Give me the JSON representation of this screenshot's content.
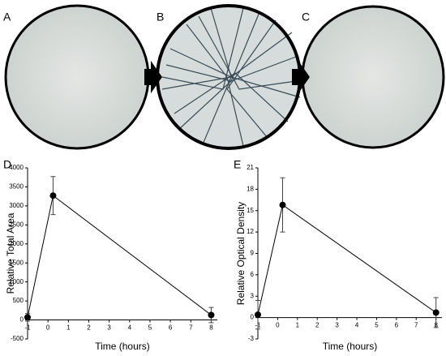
{
  "panels": [
    {
      "label": "A"
    },
    {
      "label": "B"
    },
    {
      "label": "C"
    }
  ],
  "chart_data": [
    {
      "type": "line",
      "panel_label": "D",
      "xlabel": "Time (hours)",
      "ylabel": "Relative Total Area",
      "x": [
        -1,
        0.25,
        8
      ],
      "series": [
        {
          "color": "#000000",
          "values": [
            70,
            3270,
            130
          ],
          "errors": [
            100,
            500,
            200
          ]
        }
      ],
      "xlim": [
        -1,
        8.3
      ],
      "xticks": [
        -1,
        0,
        1,
        2,
        3,
        4,
        5,
        6,
        7,
        8
      ],
      "ylim": [
        -500,
        4000
      ],
      "yticks": [
        -500,
        0,
        500,
        1000,
        1500,
        2000,
        2500,
        3000,
        3500,
        4000
      ]
    },
    {
      "type": "line",
      "panel_label": "E",
      "xlabel": "Time (hours)",
      "ylabel": "Relative Optical Density",
      "x": [
        -1,
        0.25,
        8
      ],
      "series": [
        {
          "color": "#000000",
          "values": [
            0.4,
            15.8,
            0.7
          ],
          "errors": [
            2,
            3.8,
            2.1
          ]
        }
      ],
      "xlim": [
        -1,
        8.3
      ],
      "xticks": [
        -1,
        0,
        1,
        2,
        3,
        4,
        5,
        6,
        7,
        8
      ],
      "ylim": [
        -3,
        21
      ],
      "yticks": [
        -3,
        0,
        3,
        6,
        9,
        12,
        15,
        18,
        21
      ]
    }
  ]
}
